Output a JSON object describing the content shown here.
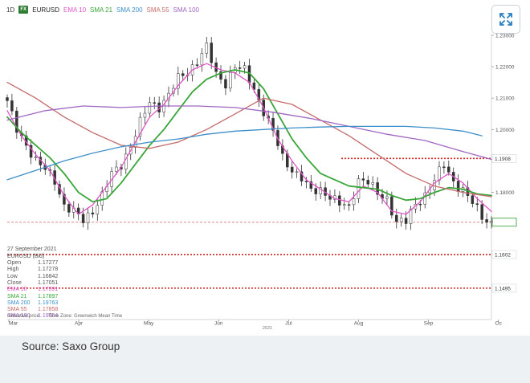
{
  "legend": {
    "interval": "1D",
    "badge": "FX",
    "symbol": "EURUSD",
    "indicators": [
      {
        "label": "EMA 10",
        "color": "#e056c8"
      },
      {
        "label": "SMA 21",
        "color": "#3aa63a"
      },
      {
        "label": "SMA 200",
        "color": "#3d8fc9"
      },
      {
        "label": "SMA 55",
        "color": "#c46a6a"
      },
      {
        "label": "SMA 100",
        "color": "#a066c2"
      }
    ]
  },
  "info": {
    "date": "27 September 2021",
    "symbol": "EURUSD (Bid)",
    "rows": [
      {
        "k": "Open",
        "v": "1.17277",
        "color": "#555555"
      },
      {
        "k": "High",
        "v": "1.17278",
        "color": "#555555"
      },
      {
        "k": "Low",
        "v": "1.16842",
        "color": "#555555"
      },
      {
        "k": "Close",
        "v": "1.17051",
        "color": "#555555"
      },
      {
        "k": "EMA 10",
        "v": "1.17391",
        "color": "#e056c8"
      },
      {
        "k": "SMA 21",
        "v": "1.17897",
        "color": "#3aa63a"
      },
      {
        "k": "SMA 200",
        "v": "1.19763",
        "color": "#3d8fc9"
      },
      {
        "k": "SMA 55",
        "v": "1.17858",
        "color": "#c46a6a"
      },
      {
        "k": "SMA 100",
        "v": "1.19054",
        "color": "#a066c2"
      }
    ],
    "indicative": "Indicative price",
    "timezone": "Time Zone: Greenwich Mean Time"
  },
  "source": "Source: Saxo Group",
  "chart_data": {
    "type": "line",
    "ylim": [
      1.1395,
      1.2305
    ],
    "yticks": [
      {
        "value": 1.23,
        "label": "1.23000"
      },
      {
        "value": 1.22,
        "label": "1.22000"
      },
      {
        "value": 1.21,
        "label": "1.21000"
      },
      {
        "value": 1.2,
        "label": "1.20000"
      },
      {
        "value": 1.18,
        "label": "1.18000"
      }
    ],
    "xticks": [
      "Mar",
      "Apr",
      "May",
      "Jun",
      "Jul",
      "Aug",
      "Sep",
      "Oc"
    ],
    "year_label": "2021",
    "levels": [
      {
        "value": 1.1908,
        "label": "1.1908",
        "color": "#cc2222",
        "style": "dotted",
        "start_fraction": 0.69
      },
      {
        "value": 1.1705,
        "label": "1.1705",
        "color": "#cc2222",
        "style": "dashed",
        "start_fraction": 0
      },
      {
        "value": 1.1602,
        "label": "1.1602",
        "color": "#cc2222",
        "style": "dotted",
        "start_fraction": 0
      },
      {
        "value": 1.1495,
        "label": "1.1495",
        "color": "#cc2222",
        "style": "dotted",
        "start_fraction": 0
      }
    ],
    "last_price": {
      "value": 1.1705,
      "label": "1.1705",
      "color": "#2e9e2e"
    },
    "price_keypoints": [
      [
        0,
        1.2085
      ],
      [
        2,
        1.2
      ],
      [
        4,
        1.1955
      ],
      [
        6,
        1.19
      ],
      [
        8,
        1.187
      ],
      [
        10,
        1.184
      ],
      [
        12,
        1.176
      ],
      [
        14,
        1.1735
      ],
      [
        16,
        1.171
      ],
      [
        18,
        1.1745
      ],
      [
        20,
        1.179
      ],
      [
        22,
        1.1855
      ],
      [
        24,
        1.189
      ],
      [
        26,
        1.195
      ],
      [
        28,
        1.202
      ],
      [
        30,
        1.2085
      ],
      [
        32,
        1.2075
      ],
      [
        34,
        1.211
      ],
      [
        36,
        1.216
      ],
      [
        38,
        1.2185
      ],
      [
        40,
        1.222
      ],
      [
        42,
        1.226
      ],
      [
        44,
        1.2175
      ],
      [
        46,
        1.215
      ],
      [
        48,
        1.22
      ],
      [
        50,
        1.2185
      ],
      [
        52,
        1.213
      ],
      [
        54,
        1.206
      ],
      [
        56,
        1.199
      ],
      [
        58,
        1.191
      ],
      [
        60,
        1.1875
      ],
      [
        62,
        1.1845
      ],
      [
        64,
        1.18
      ],
      [
        66,
        1.181
      ],
      [
        68,
        1.179
      ],
      [
        70,
        1.176
      ],
      [
        72,
        1.175
      ],
      [
        74,
        1.1845
      ],
      [
        76,
        1.1835
      ],
      [
        78,
        1.179
      ],
      [
        80,
        1.178
      ],
      [
        82,
        1.171
      ],
      [
        84,
        1.1705
      ],
      [
        86,
        1.176
      ],
      [
        88,
        1.1795
      ],
      [
        90,
        1.184
      ],
      [
        92,
        1.1885
      ],
      [
        94,
        1.1835
      ],
      [
        96,
        1.181
      ],
      [
        98,
        1.1765
      ],
      [
        100,
        1.172
      ],
      [
        102,
        1.1705
      ]
    ],
    "series": [
      {
        "name": "EMA 10",
        "color": "#e056c8",
        "values": [
          [
            0,
            1.206
          ],
          [
            3,
            1.198
          ],
          [
            6,
            1.192
          ],
          [
            9,
            1.187
          ],
          [
            12,
            1.179
          ],
          [
            15,
            1.173
          ],
          [
            18,
            1.176
          ],
          [
            21,
            1.182
          ],
          [
            24,
            1.188
          ],
          [
            27,
            1.196
          ],
          [
            30,
            1.204
          ],
          [
            33,
            1.208
          ],
          [
            36,
            1.214
          ],
          [
            39,
            1.219
          ],
          [
            42,
            1.221
          ],
          [
            45,
            1.219
          ],
          [
            48,
            1.218
          ],
          [
            51,
            1.215
          ],
          [
            54,
            1.207
          ],
          [
            57,
            1.197
          ],
          [
            60,
            1.19
          ],
          [
            63,
            1.184
          ],
          [
            66,
            1.181
          ],
          [
            69,
            1.178
          ],
          [
            72,
            1.177
          ],
          [
            75,
            1.182
          ],
          [
            78,
            1.18
          ],
          [
            81,
            1.174
          ],
          [
            84,
            1.173
          ],
          [
            87,
            1.177
          ],
          [
            90,
            1.183
          ],
          [
            93,
            1.186
          ],
          [
            96,
            1.183
          ],
          [
            99,
            1.178
          ],
          [
            102,
            1.1739
          ]
        ]
      },
      {
        "name": "SMA 21",
        "color": "#3aa63a",
        "values": [
          [
            0,
            1.204
          ],
          [
            3,
            1.199
          ],
          [
            6,
            1.195
          ],
          [
            9,
            1.191
          ],
          [
            12,
            1.186
          ],
          [
            15,
            1.18
          ],
          [
            18,
            1.177
          ],
          [
            21,
            1.178
          ],
          [
            24,
            1.183
          ],
          [
            27,
            1.189
          ],
          [
            30,
            1.195
          ],
          [
            33,
            1.2
          ],
          [
            36,
            1.206
          ],
          [
            39,
            1.212
          ],
          [
            42,
            1.216
          ],
          [
            45,
            1.218
          ],
          [
            48,
            1.219
          ],
          [
            51,
            1.218
          ],
          [
            54,
            1.213
          ],
          [
            57,
            1.205
          ],
          [
            60,
            1.197
          ],
          [
            63,
            1.191
          ],
          [
            66,
            1.186
          ],
          [
            69,
            1.184
          ],
          [
            72,
            1.182
          ],
          [
            75,
            1.1815
          ],
          [
            78,
            1.181
          ],
          [
            81,
            1.179
          ],
          [
            84,
            1.1775
          ],
          [
            87,
            1.178
          ],
          [
            90,
            1.18
          ],
          [
            93,
            1.1815
          ],
          [
            96,
            1.181
          ],
          [
            99,
            1.1795
          ],
          [
            102,
            1.179
          ]
        ]
      },
      {
        "name": "SMA 55",
        "color": "#c46a6a",
        "values": [
          [
            0,
            1.215
          ],
          [
            6,
            1.21
          ],
          [
            12,
            1.204
          ],
          [
            18,
            1.199
          ],
          [
            24,
            1.195
          ],
          [
            30,
            1.194
          ],
          [
            36,
            1.196
          ],
          [
            42,
            1.2
          ],
          [
            48,
            1.205
          ],
          [
            54,
            1.21
          ],
          [
            60,
            1.208
          ],
          [
            66,
            1.203
          ],
          [
            72,
            1.198
          ],
          [
            78,
            1.192
          ],
          [
            84,
            1.186
          ],
          [
            90,
            1.182
          ],
          [
            96,
            1.18
          ],
          [
            102,
            1.1786
          ]
        ]
      },
      {
        "name": "SMA 100",
        "color": "#a066c2",
        "values": [
          [
            0,
            1.203
          ],
          [
            8,
            1.206
          ],
          [
            16,
            1.2075
          ],
          [
            24,
            1.207
          ],
          [
            32,
            1.2075
          ],
          [
            40,
            1.2075
          ],
          [
            48,
            1.207
          ],
          [
            56,
            1.2055
          ],
          [
            64,
            1.2035
          ],
          [
            72,
            1.201
          ],
          [
            80,
            1.1985
          ],
          [
            88,
            1.1965
          ],
          [
            96,
            1.193
          ],
          [
            102,
            1.1905
          ]
        ]
      },
      {
        "name": "SMA 200",
        "color": "#3d8fc9",
        "values": [
          [
            0,
            1.184
          ],
          [
            6,
            1.187
          ],
          [
            12,
            1.19
          ],
          [
            18,
            1.1925
          ],
          [
            24,
            1.1945
          ],
          [
            30,
            1.196
          ],
          [
            36,
            1.197
          ],
          [
            42,
            1.1985
          ],
          [
            48,
            1.1995
          ],
          [
            54,
            1.2
          ],
          [
            60,
            1.2005
          ],
          [
            66,
            1.2008
          ],
          [
            72,
            1.201
          ],
          [
            78,
            1.201
          ],
          [
            84,
            1.201
          ],
          [
            90,
            1.2005
          ],
          [
            96,
            1.1995
          ],
          [
            100,
            1.198
          ]
        ]
      }
    ]
  }
}
